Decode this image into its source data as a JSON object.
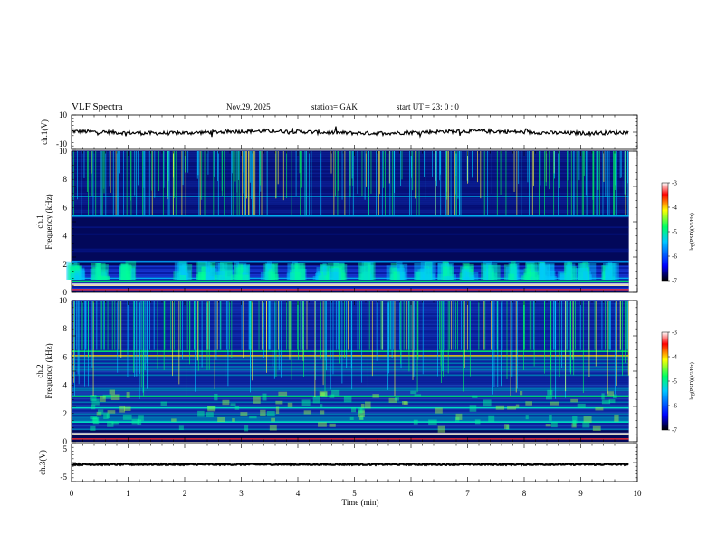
{
  "header": {
    "title": "VLF  Spectra",
    "date": "Nov.29, 2025",
    "station": "station= GAK",
    "start": "start  UT =   23: 0   : 0"
  },
  "chart_data": {
    "type": "heatmap",
    "xlabel": "Time  (min)",
    "x_ticks": [
      "0",
      "1",
      "2",
      "3",
      "4",
      "5",
      "6",
      "7",
      "8",
      "9",
      "10"
    ],
    "xlim": [
      0,
      10
    ],
    "data_end_min": 9.85,
    "panels": {
      "ch1_waveform": {
        "ylabel": "ch.1(V)",
        "ylim": [
          -10,
          10
        ],
        "ticks": [
          "10",
          "-10"
        ],
        "mean_level": 0
      },
      "ch1_spectrogram": {
        "ylabel_line1": "ch.1",
        "ylabel_line2": "Frequency  (kHz)",
        "ylim": [
          0,
          10
        ],
        "ticks": [
          "0",
          "2",
          "4",
          "6",
          "8",
          "10"
        ],
        "chorus_burst_times_min": [
          0.1,
          0.5,
          1.0,
          1.95,
          2.4,
          2.7,
          3.0,
          3.5,
          3.95,
          4.4,
          4.7,
          5.2,
          5.75,
          6.25,
          6.6,
          7.0,
          7.4,
          7.8,
          8.1,
          8.4,
          8.75,
          9.1,
          9.5
        ]
      },
      "ch2_spectrogram": {
        "ylabel_line1": "ch.2",
        "ylabel_line2": "Frequency  (kHz)",
        "ylim": [
          0,
          10
        ],
        "ticks": [
          "0",
          "2",
          "4",
          "6",
          "8",
          "10"
        ]
      },
      "ch3_waveform": {
        "ylabel": "ch.3(V)",
        "ylim": [
          -5,
          5
        ],
        "ticks": [
          "5",
          "-5"
        ],
        "mean_level": -0.5
      }
    },
    "colorbar": {
      "label": "log(PSD)(V²/Hz)",
      "range": [
        -7,
        -3
      ],
      "ticks": [
        "-3",
        "-4",
        "-5",
        "-6",
        "-7"
      ],
      "colors": [
        "#000000",
        "#0000ff",
        "#00c8ff",
        "#00ff64",
        "#ffff00",
        "#ff0000",
        "#ffffff"
      ]
    }
  }
}
